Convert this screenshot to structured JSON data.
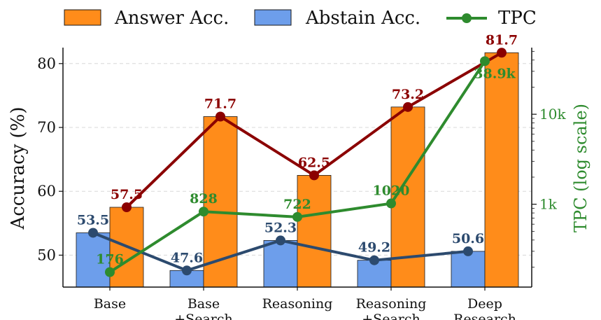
{
  "chart_data": {
    "type": "bar",
    "categories": [
      "Base",
      "Base\n+Search",
      "Reasoning",
      "Reasoning\n+Search",
      "Deep\nResearch"
    ],
    "series": [
      {
        "name": "Answer Acc.",
        "kind": "bar",
        "axis": "left",
        "values": [
          57.5,
          71.7,
          62.5,
          73.2,
          81.7
        ],
        "color": "#ff8c1a",
        "labels": [
          "57.5",
          "71.7",
          "62.5",
          "73.2",
          "81.7"
        ]
      },
      {
        "name": "Abstain Acc.",
        "kind": "bar",
        "axis": "left",
        "values": [
          53.5,
          47.6,
          52.3,
          49.2,
          50.6
        ],
        "color": "#6d9eeb",
        "labels": [
          "53.5",
          "47.6",
          "52.3",
          "49.2",
          "50.6"
        ]
      },
      {
        "name": "TPC",
        "kind": "line",
        "axis": "right",
        "values": [
          176,
          828,
          722,
          1020,
          38900
        ],
        "color": "#2e8b2e",
        "labels": [
          "176",
          "828",
          "722",
          "1020",
          "38.9k"
        ]
      }
    ],
    "overlay_lines": {
      "answer_line_color": "#8b0000",
      "abstain_line_color": "#2c4a6e"
    },
    "ylabel": "Accuracy (%)",
    "ylim": [
      45,
      82.5
    ],
    "yticks": [
      50,
      60,
      70,
      80
    ],
    "y2label": "TPC (log scale)",
    "y2scale": "log",
    "y2lim": [
      120,
      55000
    ],
    "y2ticks": [
      1000,
      10000
    ],
    "y2ticklabels": [
      "1k",
      "10k"
    ],
    "grid": true,
    "legend_position": "top"
  }
}
